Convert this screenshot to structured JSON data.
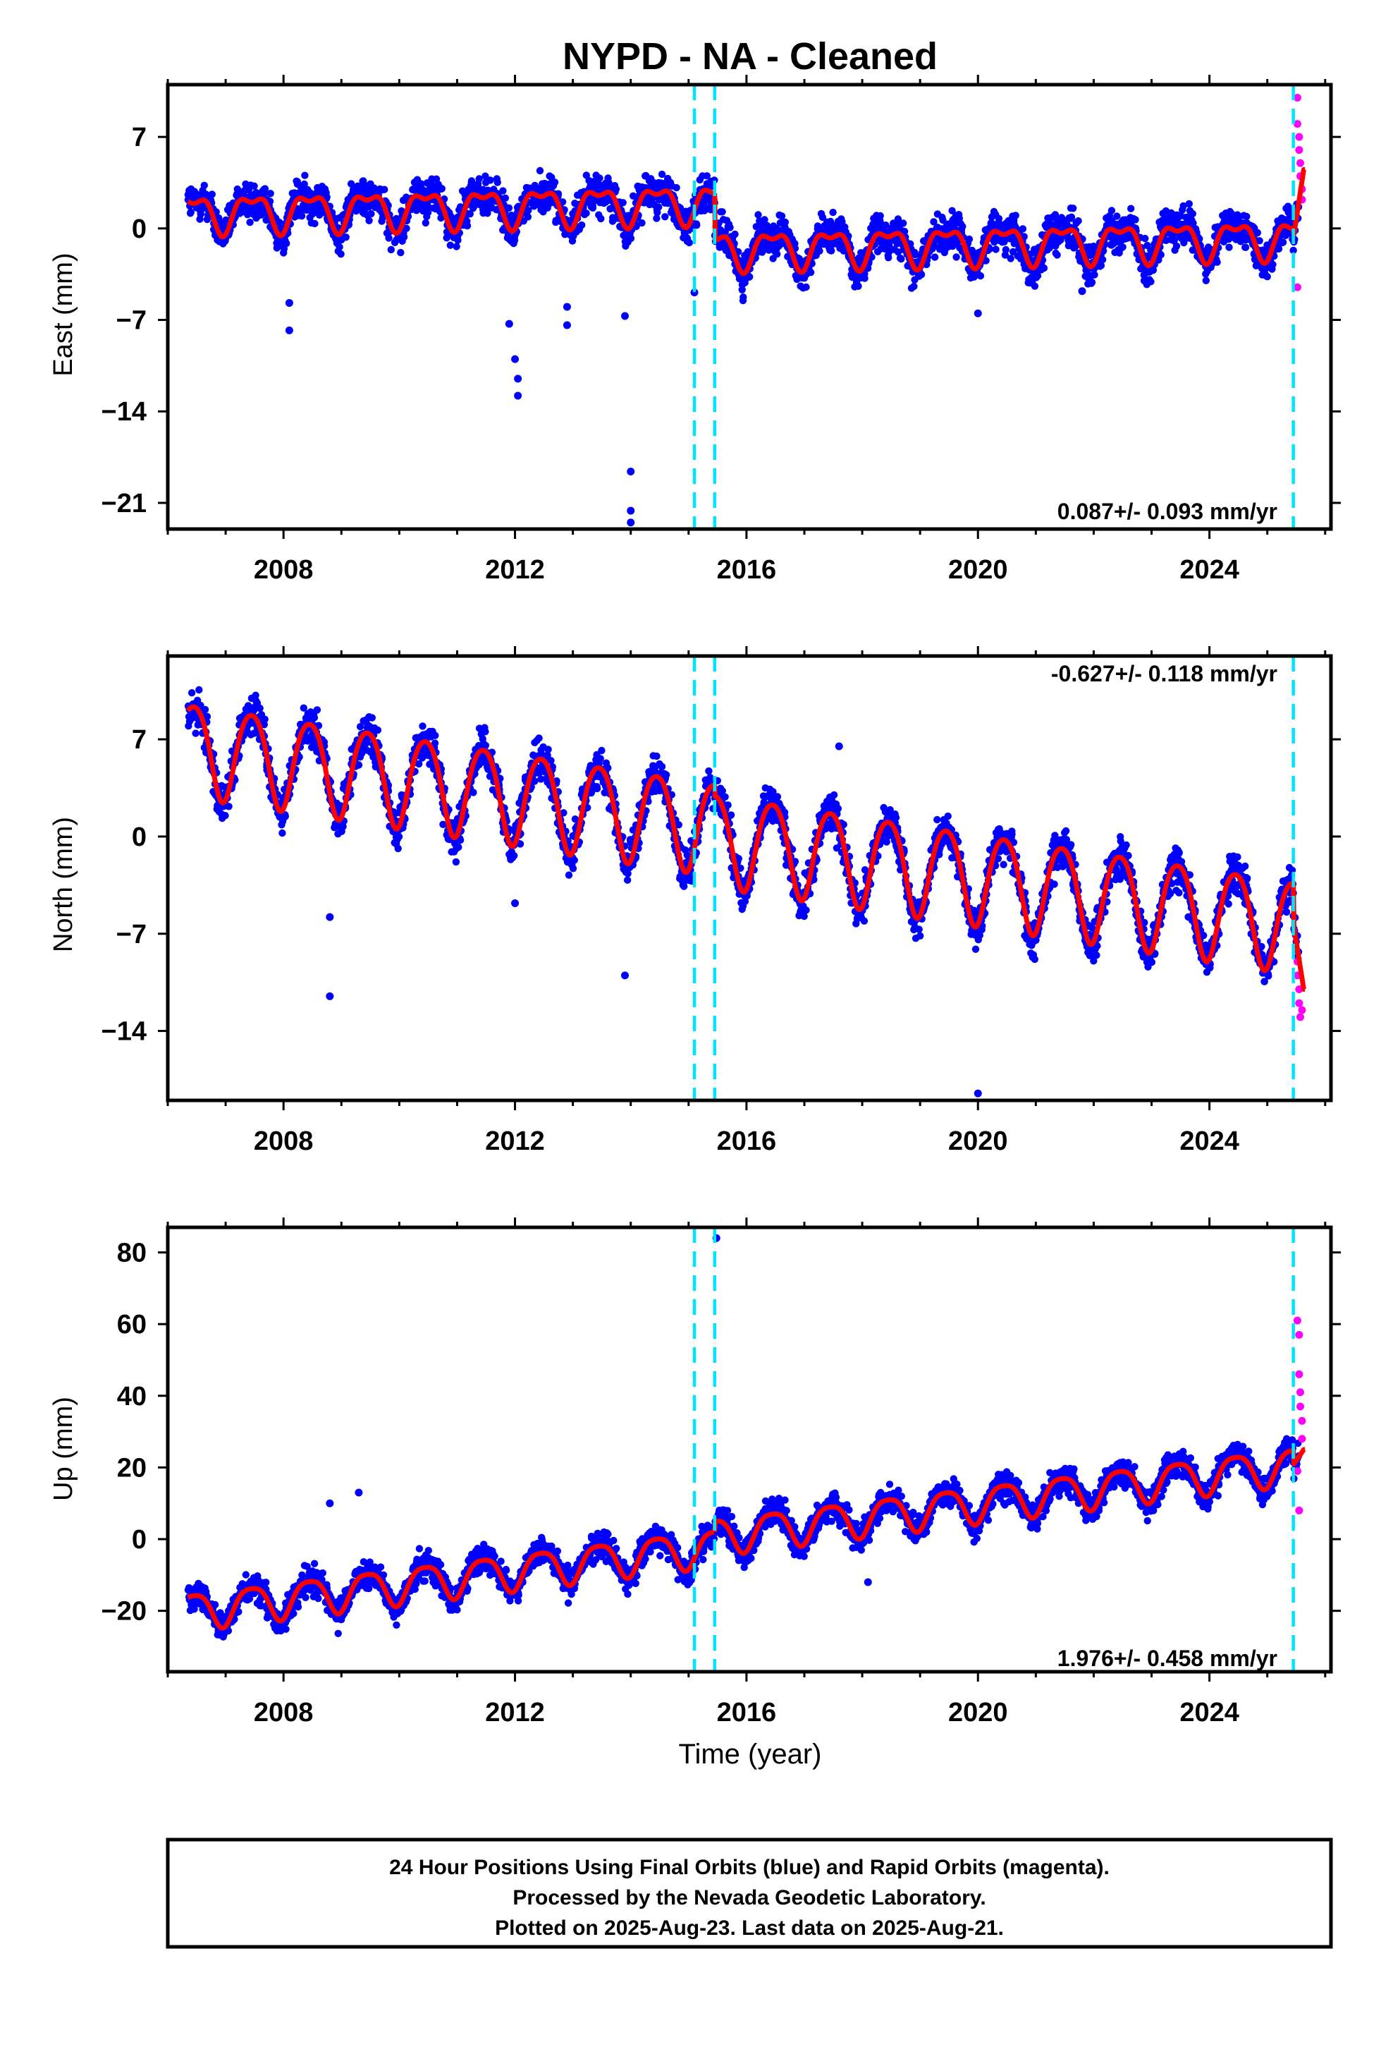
{
  "title": "NYPD  - NA - Cleaned",
  "colors": {
    "final_orbits": "#0000ff",
    "rapid_orbits": "#ff00ff",
    "model": "#ff0000",
    "breaks": "#00e5ff",
    "frame": "#000000"
  },
  "footer": {
    "line1": "24 Hour Positions Using Final Orbits (blue) and Rapid Orbits (magenta).",
    "line2": "Processed by the Nevada Geodetic Laboratory.",
    "line3": "Plotted on 2025-Aug-23. Last data on 2025-Aug-21."
  },
  "chart_data": [
    {
      "type": "scatter",
      "name": "east",
      "ylabel": "East (mm)",
      "xlabel": "",
      "rate_text": "0.087+/- 0.093 mm/yr",
      "rate_position": "bottom-right",
      "xlim": [
        2006.0,
        2026.1
      ],
      "ylim": [
        -23.0,
        11.0
      ],
      "yticks": [
        7,
        0,
        -7,
        -14,
        -21
      ],
      "ytick_labels": [
        "7",
        "0",
        "−7",
        "−14",
        "−21"
      ],
      "xticks": [
        2008,
        2012,
        2016,
        2020,
        2024
      ],
      "xtick_labels": [
        "2008",
        "2012",
        "2016",
        "2020",
        "2024"
      ],
      "breaks": [
        2015.1,
        2015.45,
        2025.45
      ],
      "model": {
        "start": 2006.35,
        "end": 2025.65,
        "offsets": [
          [
            2006.35,
            1.2
          ],
          [
            2015.45,
            -1.6
          ],
          [
            2025.45,
            4.5
          ]
        ],
        "trend_mm_yr": 0.087,
        "annual_amp": 1.3,
        "semiannual_amp": 0.6,
        "scatter_mm": 1.3
      },
      "outliers": [
        [
          2008.1,
          -5.7
        ],
        [
          2008.1,
          -7.8
        ],
        [
          2011.9,
          -7.3
        ],
        [
          2012.0,
          -10.0
        ],
        [
          2012.05,
          -11.5
        ],
        [
          2012.05,
          -12.8
        ],
        [
          2012.9,
          -6.0
        ],
        [
          2012.9,
          -7.4
        ],
        [
          2013.9,
          -6.7
        ],
        [
          2014.0,
          -18.6
        ],
        [
          2014.0,
          -21.6
        ],
        [
          2014.0,
          -22.5
        ],
        [
          2020.0,
          -6.5
        ],
        [
          2021.8,
          -4.8
        ],
        [
          2015.1,
          -4.9
        ]
      ],
      "rapid": [
        [
          2025.52,
          10.0
        ],
        [
          2025.52,
          8.0
        ],
        [
          2025.55,
          7.0
        ],
        [
          2025.55,
          6.0
        ],
        [
          2025.57,
          5.0
        ],
        [
          2025.57,
          4.0
        ],
        [
          2025.6,
          3.0
        ],
        [
          2025.6,
          2.2
        ],
        [
          2025.52,
          -4.5
        ]
      ]
    },
    {
      "type": "scatter",
      "name": "north",
      "ylabel": "North (mm)",
      "xlabel": "",
      "rate_text": "-0.627+/- 0.118 mm/yr",
      "rate_position": "top-right",
      "xlim": [
        2006.0,
        2026.1
      ],
      "ylim": [
        -19.0,
        13.0
      ],
      "yticks": [
        7,
        0,
        -7,
        -14
      ],
      "ytick_labels": [
        "7",
        "0",
        "−7",
        "−14"
      ],
      "xticks": [
        2008,
        2012,
        2016,
        2020,
        2024
      ],
      "xtick_labels": [
        "2008",
        "2012",
        "2016",
        "2020",
        "2024"
      ],
      "breaks": [
        2015.1,
        2015.45,
        2025.45
      ],
      "model": {
        "start": 2006.35,
        "end": 2025.65,
        "offsets": [
          [
            2006.35,
            6.5
          ],
          [
            2015.45,
            0.0
          ],
          [
            2025.45,
            -11.0
          ]
        ],
        "trend_mm_yr": -0.627,
        "annual_amp": 3.3,
        "semiannual_amp": 0.4,
        "scatter_mm": 1.3
      },
      "outliers": [
        [
          2008.8,
          -5.8
        ],
        [
          2008.8,
          -11.5
        ],
        [
          2012.0,
          -4.8
        ],
        [
          2013.9,
          -10.0
        ],
        [
          2020.0,
          -18.5
        ],
        [
          2017.6,
          6.5
        ]
      ],
      "rapid": [
        [
          2025.52,
          -9.0
        ],
        [
          2025.52,
          -10.0
        ],
        [
          2025.55,
          -11.0
        ],
        [
          2025.55,
          -12.0
        ],
        [
          2025.57,
          -13.0
        ],
        [
          2025.6,
          -12.5
        ]
      ]
    },
    {
      "type": "scatter",
      "name": "up",
      "ylabel": "Up (mm)",
      "xlabel": "Time (year)",
      "rate_text": "1.976+/- 0.458 mm/yr",
      "rate_position": "bottom-right",
      "xlim": [
        2006.0,
        2026.1
      ],
      "ylim": [
        -37.0,
        87.0
      ],
      "yticks": [
        80,
        60,
        40,
        20,
        0,
        -20
      ],
      "ytick_labels": [
        "80",
        "60",
        "40",
        "20",
        "0",
        "−20"
      ],
      "xticks": [
        2008,
        2012,
        2016,
        2020,
        2024
      ],
      "xtick_labels": [
        "2008",
        "2012",
        "2016",
        "2020",
        "2024"
      ],
      "breaks": [
        2015.1,
        2015.45,
        2025.45
      ],
      "model": {
        "start": 2006.35,
        "end": 2025.65,
        "offsets": [
          [
            2006.35,
            -20.0
          ],
          [
            2015.45,
            1.0
          ],
          [
            2025.45,
            25.0
          ]
        ],
        "trend_mm_yr": 1.976,
        "annual_amp": 5.0,
        "semiannual_amp": 1.0,
        "scatter_mm": 3.5
      },
      "outliers": [
        [
          2015.48,
          84.0
        ],
        [
          2008.8,
          10.0
        ],
        [
          2009.3,
          13.0
        ],
        [
          2018.1,
          -12.0
        ]
      ],
      "rapid": [
        [
          2025.52,
          61.0
        ],
        [
          2025.55,
          57.0
        ],
        [
          2025.55,
          46.0
        ],
        [
          2025.57,
          41.0
        ],
        [
          2025.57,
          37.0
        ],
        [
          2025.6,
          33.0
        ],
        [
          2025.6,
          28.0
        ],
        [
          2025.52,
          19.0
        ],
        [
          2025.55,
          8.0
        ]
      ]
    }
  ]
}
